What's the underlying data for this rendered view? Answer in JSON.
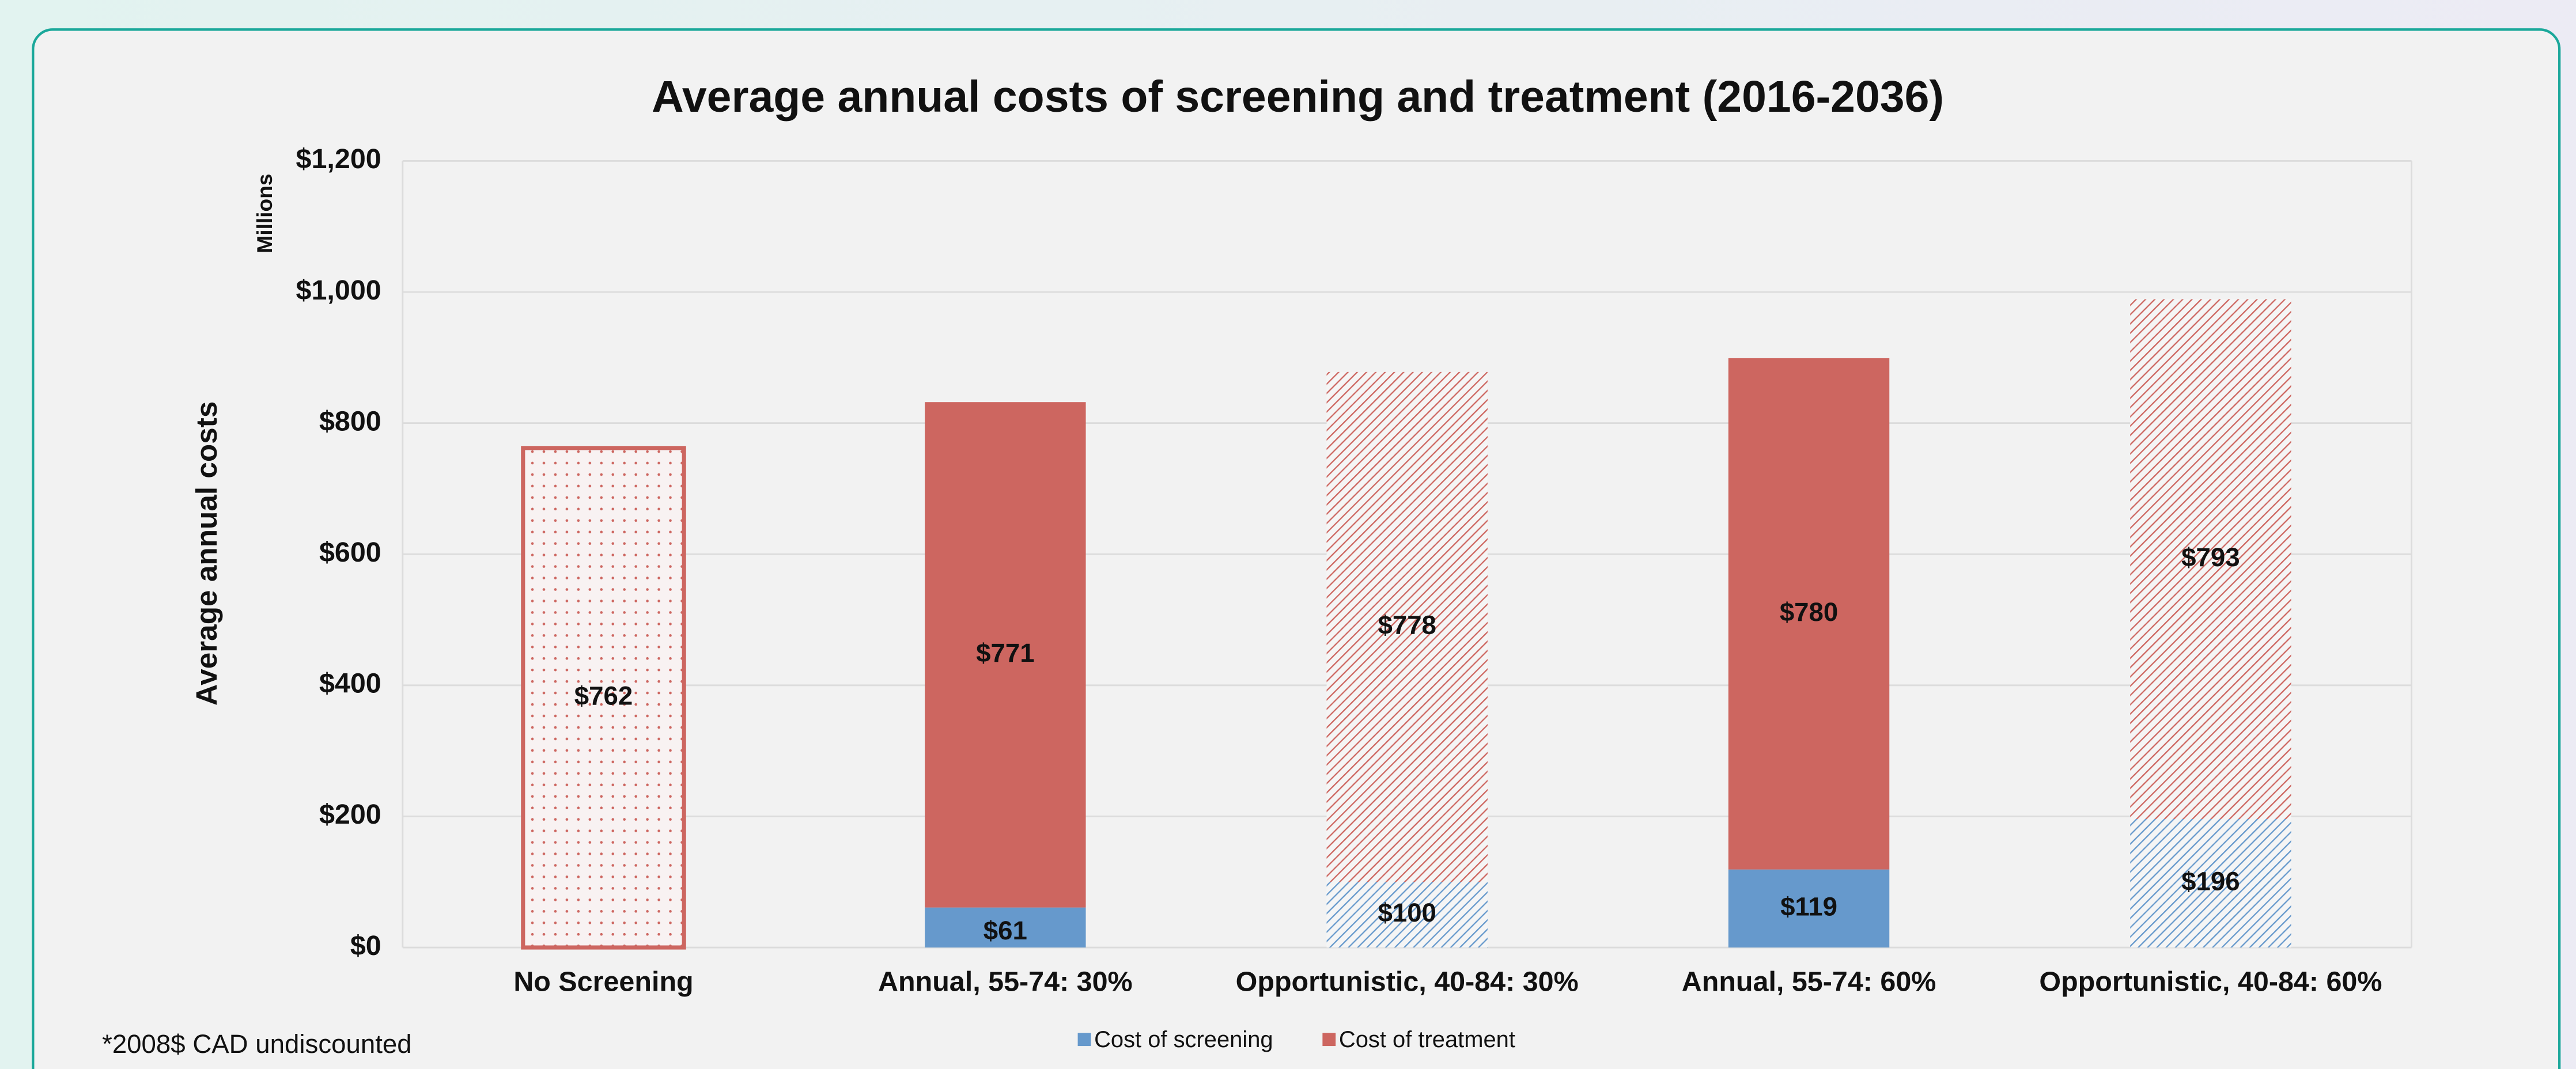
{
  "chart_data": {
    "type": "stacked_bar",
    "title": "Average annual costs of screening and treatment (2016-2036)",
    "y_label": "Average annual costs",
    "y_unit_annotation": "Millions",
    "footnote": "*2008$ CAD undiscounted",
    "categories": [
      "No Screening",
      "Annual, 55-74: 30%",
      "Opportunistic, 40-84: 30%",
      "Annual, 55-74: 60%",
      "Opportunistic, 40-84: 60%"
    ],
    "fill_patterns": [
      "dots",
      "solid",
      "hatch",
      "solid",
      "hatch"
    ],
    "series": [
      {
        "name": "Cost of screening",
        "color": "#6699cc",
        "values": [
          null,
          61,
          100,
          119,
          196
        ],
        "value_labels": [
          null,
          "$61",
          "$100",
          "$119",
          "$196"
        ]
      },
      {
        "name": "Cost of treatment",
        "color": "#cd6660",
        "values": [
          762,
          771,
          778,
          780,
          793
        ],
        "value_labels": [
          "$762",
          "$771",
          "$778",
          "$780",
          "$793"
        ]
      }
    ],
    "ylim": [
      0,
      1200
    ],
    "yticks": [
      {
        "value": 0,
        "label": "$0"
      },
      {
        "value": 200,
        "label": "$200"
      },
      {
        "value": 400,
        "label": "$400"
      },
      {
        "value": 600,
        "label": "$600"
      },
      {
        "value": 800,
        "label": "$800"
      },
      {
        "value": 1000,
        "label": "$1,000"
      },
      {
        "value": 1200,
        "label": "$1,200"
      }
    ],
    "grid": true,
    "legend": "bottom"
  }
}
